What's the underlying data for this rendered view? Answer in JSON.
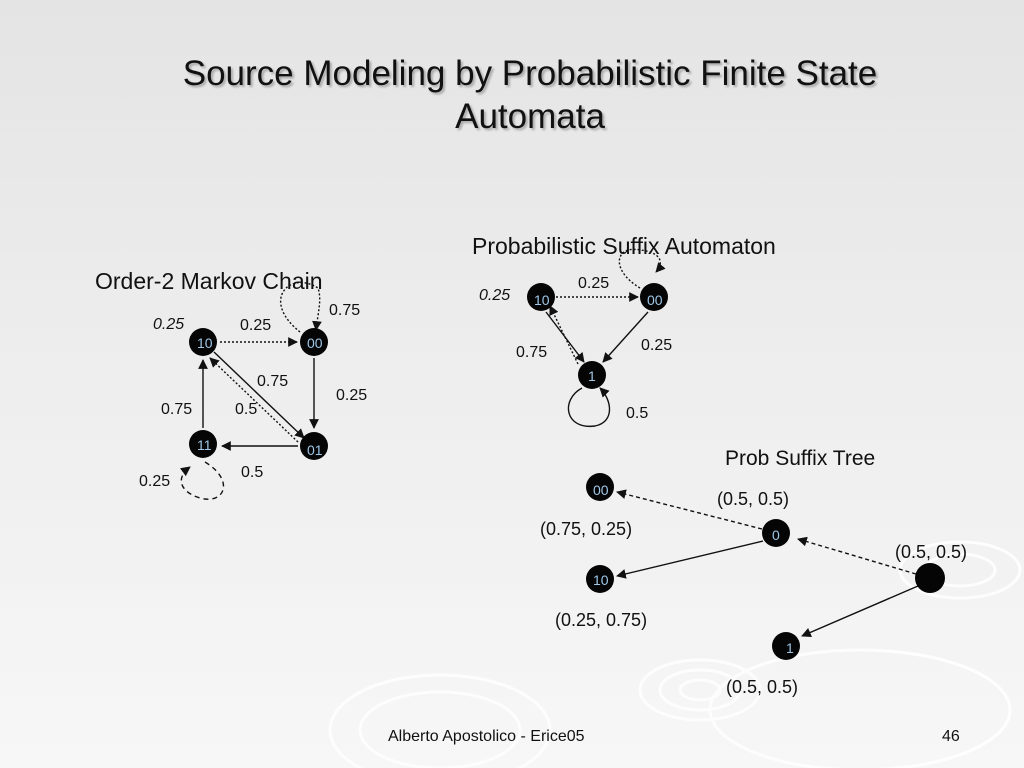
{
  "slide": {
    "title_line1": "Source Modeling by Probabilistic Finite State",
    "title_line2": "Automata",
    "footer_author": "Alberto Apostolico  - Erice05",
    "page_number": "46"
  },
  "markov_chain": {
    "heading": "Order-2 Markov Chain",
    "nodes": {
      "n10": "10",
      "n00": "00",
      "n11": "11",
      "n01": "01"
    },
    "edge_labels": {
      "self10": "0.25",
      "e10_00": "0.25",
      "self00": "0.75",
      "e10_01": "0.75",
      "e01_10": "0.5",
      "e00_01": "0.25",
      "e11_10": "0.75",
      "e01_11": "0.5",
      "self11": "0.25"
    }
  },
  "suffix_automaton": {
    "heading": "Probabilistic Suffix Automaton",
    "nodes": {
      "n10": "10",
      "n00": "00",
      "n1": "1"
    },
    "edge_labels": {
      "self10": "0.25",
      "e10_00": "0.25",
      "e10_1": "0.75",
      "e00_1": "0.25",
      "self1": "0.5"
    }
  },
  "suffix_tree": {
    "heading": "Prob Suffix Tree",
    "nodes": {
      "n00": "00",
      "n0": "0",
      "n10": "10",
      "n1": "1",
      "root": ""
    },
    "probs": {
      "p00": "(0.5, 0.5)",
      "p0": "(0.75, 0.25)",
      "root": "(0.5, 0.5)",
      "p10": "(0.25, 0.75)",
      "p1": "(0.5, 0.5)"
    }
  },
  "colors": {
    "node_fill": "#050505",
    "node_text": "#9ec7e8",
    "edge": "#111111"
  }
}
